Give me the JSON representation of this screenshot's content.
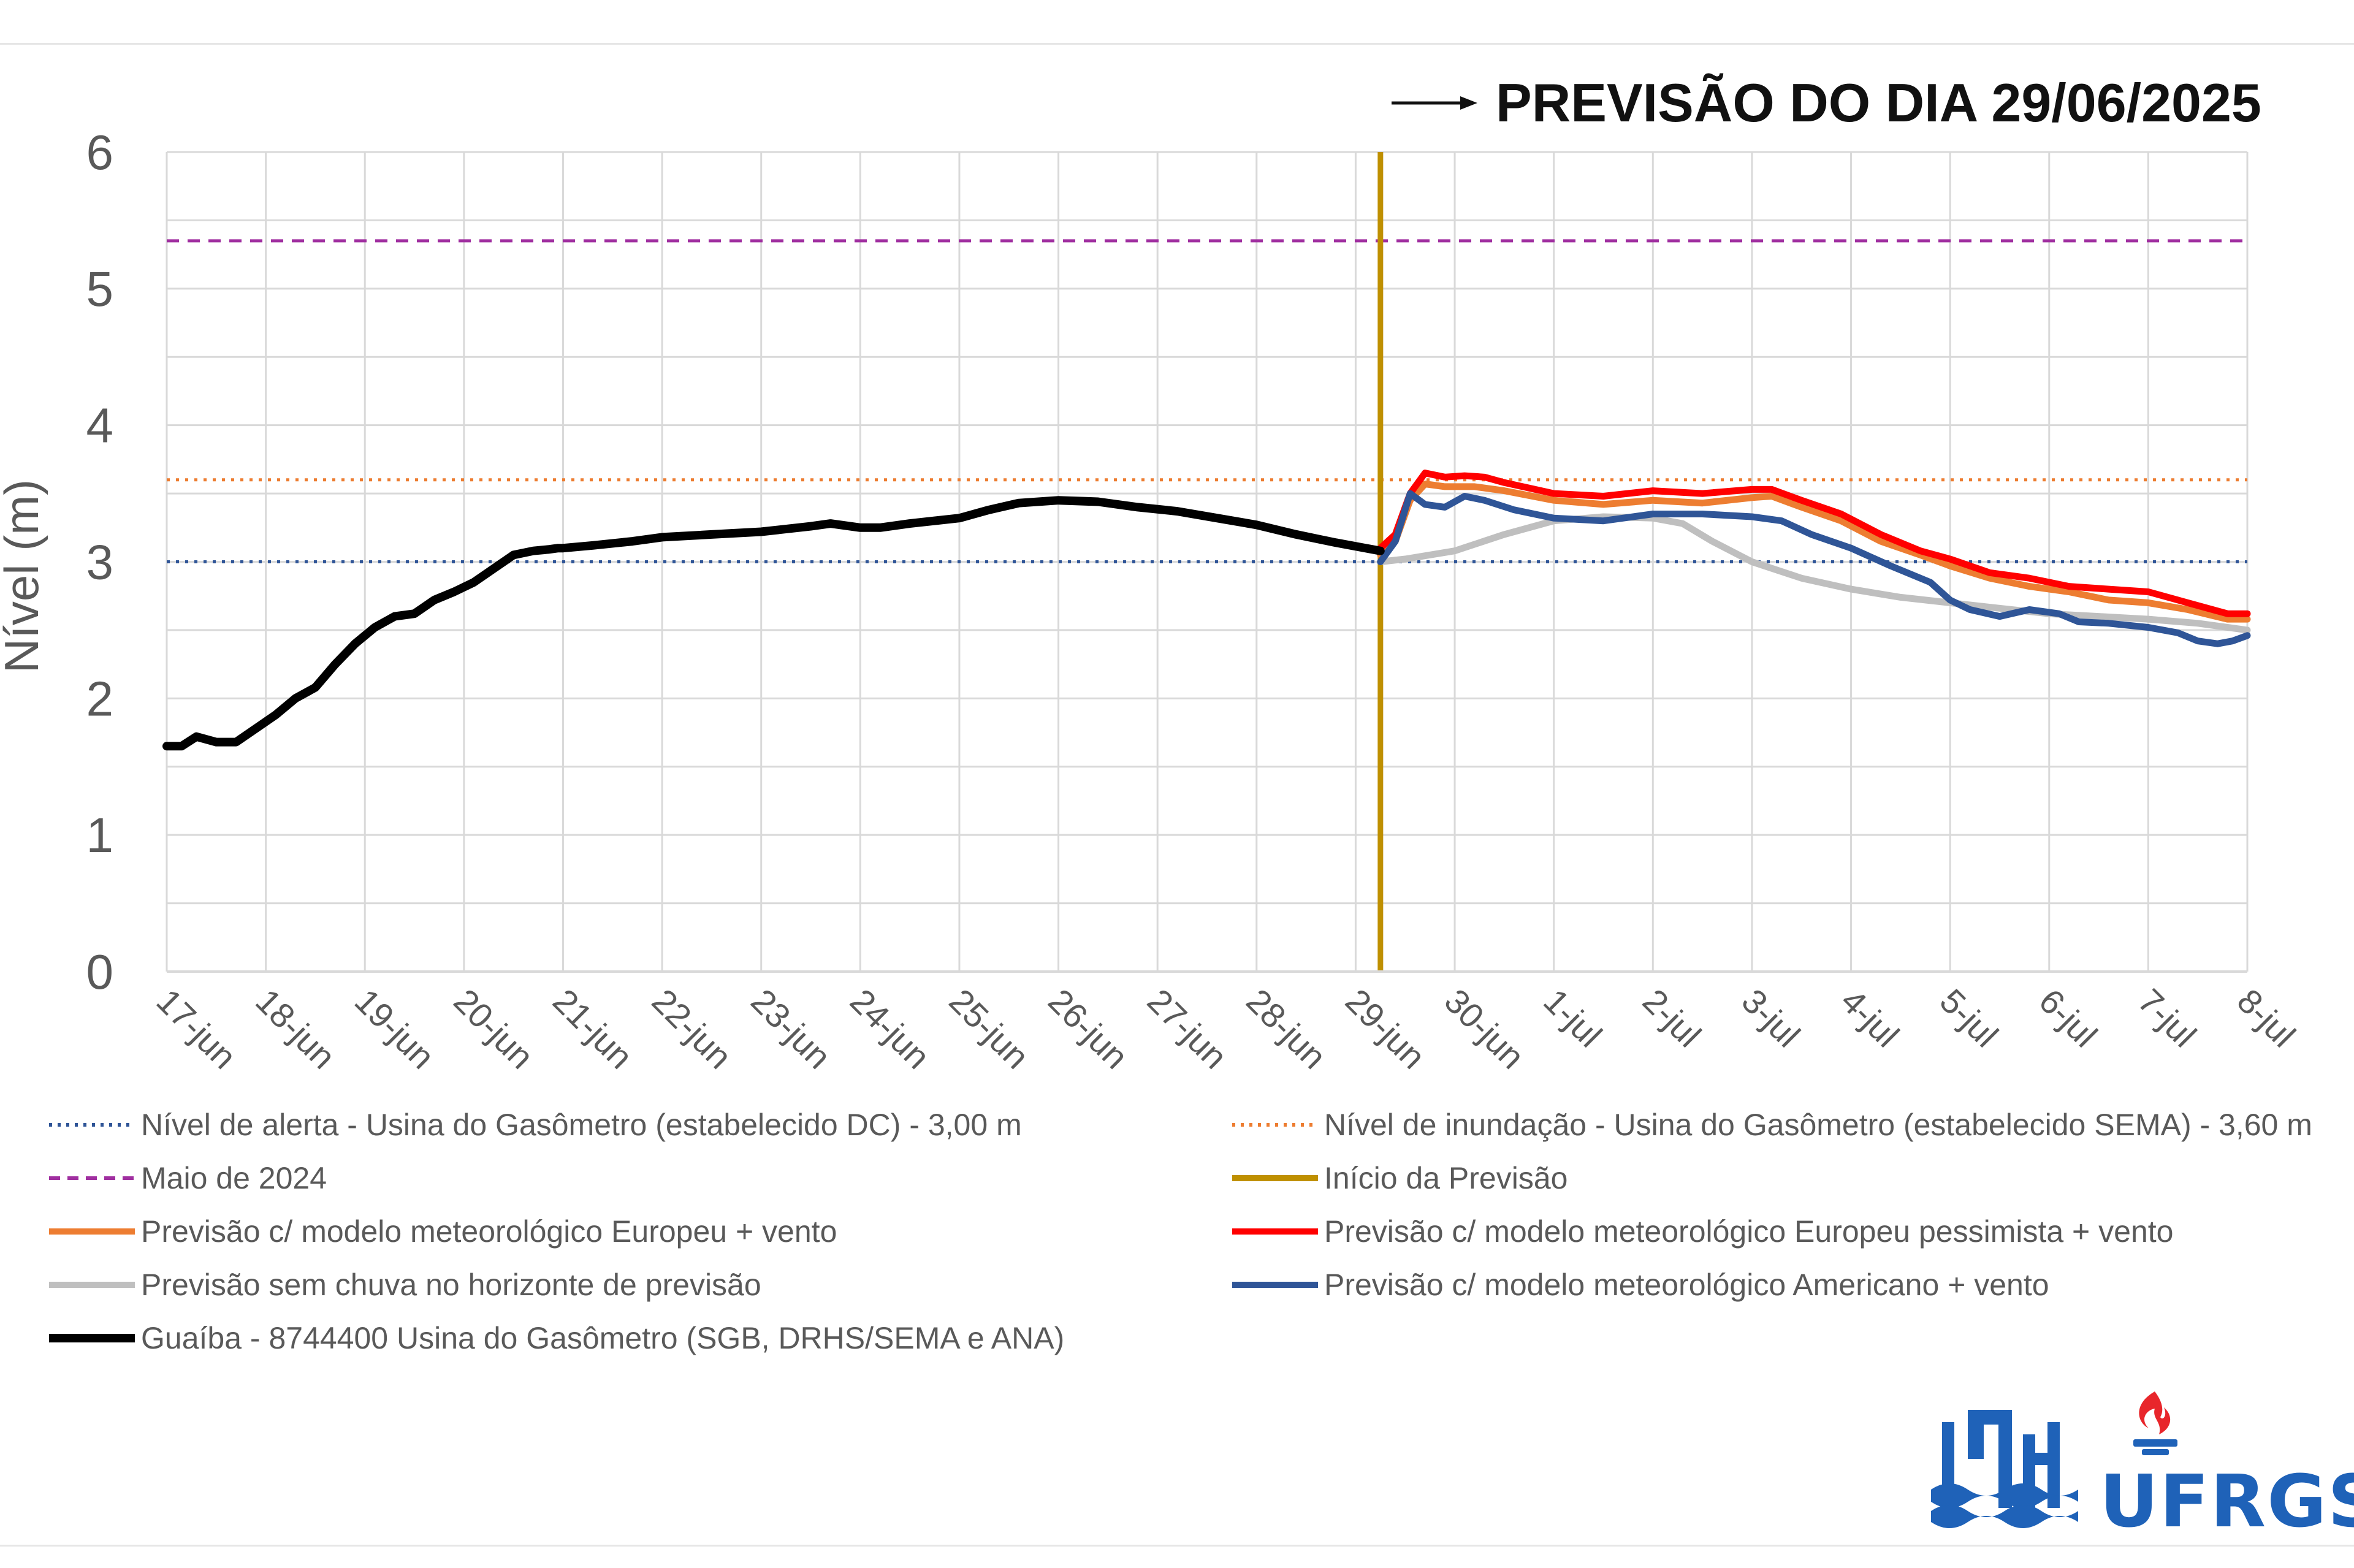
{
  "title": {
    "text": "PREVISÃO DO DIA 29/06/2025",
    "arrow_icon": "right-arrow-icon"
  },
  "chart_data": {
    "type": "line",
    "ylabel": "Nível (m)",
    "xlabel": "",
    "ylim": [
      0,
      6
    ],
    "yticks": [
      "0",
      "1",
      "2",
      "3",
      "4",
      "5",
      "6"
    ],
    "x_ticklabels": [
      "17-jun",
      "18-jun",
      "19-jun",
      "20-jun",
      "21-jun",
      "22-jun",
      "23-jun",
      "24-jun",
      "25-jun",
      "26-jun",
      "27-jun",
      "28-jun",
      "29-jun",
      "30-jun",
      "1-jul",
      "2-jul",
      "3-jul",
      "4-jul",
      "5-jul",
      "6-jul",
      "7-jul",
      "8-jul"
    ],
    "x_range_days": [
      0,
      21
    ],
    "grid": true,
    "legend_position": "bottom",
    "reference_lines": [
      {
        "name": "Nível de alerta - Usina do Gasômetro (estabelecido DC) - 3,00 m",
        "y": 3.0,
        "color": "#2f5597",
        "style": "dotted"
      },
      {
        "name": "Nível de inundação - Usina do Gasômetro (estabelecido SEMA) - 3,60 m",
        "y": 3.6,
        "color": "#ed7d31",
        "style": "dotted"
      },
      {
        "name": "Maio de 2024",
        "y": 5.35,
        "color": "#a02fa0",
        "style": "dashed"
      }
    ],
    "forecast_start": {
      "name": "Início da Previsão",
      "x": 12.25,
      "color": "#bf9000"
    },
    "series": [
      {
        "name": "Guaíba - 8744400 Usina do Gasômetro (SGB, DRHS/SEMA e ANA)",
        "color": "#000000",
        "x": [
          0,
          0.15,
          0.3,
          0.5,
          0.7,
          0.9,
          1.1,
          1.3,
          1.5,
          1.7,
          1.9,
          2.1,
          2.3,
          2.5,
          2.7,
          2.9,
          3.1,
          3.3,
          3.5,
          3.7,
          3.85,
          3.95,
          4.0,
          4.3,
          4.7,
          5.0,
          5.5,
          6.0,
          6.5,
          6.7,
          7.0,
          7.2,
          7.5,
          8.0,
          8.3,
          8.6,
          9.0,
          9.4,
          9.8,
          10.2,
          10.6,
          11.0,
          11.4,
          11.8,
          12.1,
          12.25
        ],
        "y": [
          1.65,
          1.65,
          1.72,
          1.68,
          1.68,
          1.78,
          1.88,
          2.0,
          2.08,
          2.25,
          2.4,
          2.52,
          2.6,
          2.62,
          2.72,
          2.78,
          2.85,
          2.95,
          3.05,
          3.08,
          3.09,
          3.1,
          3.1,
          3.12,
          3.15,
          3.18,
          3.2,
          3.22,
          3.26,
          3.28,
          3.25,
          3.25,
          3.28,
          3.32,
          3.38,
          3.43,
          3.45,
          3.44,
          3.4,
          3.37,
          3.32,
          3.27,
          3.2,
          3.14,
          3.1,
          3.08
        ]
      },
      {
        "name": "Previsão c/ modelo meteorológico Europeu + vento",
        "color": "#ed7d31",
        "x": [
          12.25,
          12.4,
          12.55,
          12.7,
          12.9,
          13.2,
          13.5,
          14.0,
          14.5,
          15.0,
          15.5,
          16.0,
          16.2,
          16.5,
          16.9,
          17.3,
          17.7,
          18.0,
          18.4,
          18.8,
          19.2,
          19.6,
          20.0,
          20.4,
          20.8,
          21.0
        ],
        "y": [
          3.05,
          3.15,
          3.45,
          3.57,
          3.55,
          3.55,
          3.52,
          3.45,
          3.42,
          3.45,
          3.43,
          3.47,
          3.48,
          3.4,
          3.3,
          3.15,
          3.05,
          2.97,
          2.88,
          2.82,
          2.78,
          2.72,
          2.7,
          2.65,
          2.58,
          2.58
        ]
      },
      {
        "name": "Previsão c/ modelo meteorológico Europeu pessimista + vento",
        "color": "#ff0000",
        "x": [
          12.25,
          12.4,
          12.55,
          12.7,
          12.9,
          13.1,
          13.3,
          13.5,
          14.0,
          14.5,
          15.0,
          15.5,
          16.0,
          16.2,
          16.5,
          16.9,
          17.3,
          17.7,
          18.0,
          18.4,
          18.8,
          19.2,
          19.6,
          20.0,
          20.4,
          20.8,
          21.0
        ],
        "y": [
          3.1,
          3.2,
          3.5,
          3.65,
          3.62,
          3.63,
          3.62,
          3.58,
          3.5,
          3.48,
          3.52,
          3.5,
          3.53,
          3.53,
          3.45,
          3.35,
          3.2,
          3.08,
          3.02,
          2.92,
          2.88,
          2.82,
          2.8,
          2.78,
          2.7,
          2.62,
          2.62
        ]
      },
      {
        "name": "Previsão sem chuva no horizonte de previsão",
        "color": "#bfbfbf",
        "x": [
          12.25,
          12.5,
          13.0,
          13.5,
          14.0,
          14.5,
          15.0,
          15.3,
          15.6,
          16.0,
          16.5,
          17.0,
          17.5,
          18.0,
          18.5,
          19.0,
          19.5,
          20.0,
          20.5,
          21.0
        ],
        "y": [
          3.0,
          3.02,
          3.08,
          3.2,
          3.3,
          3.33,
          3.32,
          3.28,
          3.15,
          3.0,
          2.88,
          2.8,
          2.74,
          2.7,
          2.66,
          2.62,
          2.6,
          2.58,
          2.55,
          2.5
        ]
      },
      {
        "name": "Previsão c/ modelo meteorológico Americano + vento",
        "color": "#2f5597",
        "x": [
          12.25,
          12.4,
          12.55,
          12.7,
          12.9,
          13.1,
          13.3,
          13.6,
          14.0,
          14.5,
          15.0,
          15.5,
          16.0,
          16.3,
          16.6,
          17.0,
          17.4,
          17.8,
          18.0,
          18.2,
          18.5,
          18.8,
          19.1,
          19.3,
          19.6,
          20.0,
          20.3,
          20.5,
          20.7,
          20.85,
          21.0
        ],
        "y": [
          3.0,
          3.15,
          3.5,
          3.42,
          3.4,
          3.48,
          3.45,
          3.38,
          3.32,
          3.3,
          3.35,
          3.35,
          3.33,
          3.3,
          3.2,
          3.1,
          2.97,
          2.85,
          2.72,
          2.65,
          2.6,
          2.65,
          2.62,
          2.56,
          2.55,
          2.52,
          2.48,
          2.42,
          2.4,
          2.42,
          2.46
        ]
      }
    ]
  },
  "legend": {
    "items": [
      {
        "label": "Nível de alerta - Usina do Gasômetro (estabelecido DC) - 3,00 m",
        "color": "#2f5597",
        "style": "dotted"
      },
      {
        "label": "Nível de inundação - Usina do Gasômetro (estabelecido SEMA) - 3,60 m",
        "color": "#ed7d31",
        "style": "dotted"
      },
      {
        "label": "Maio de 2024",
        "color": "#a02fa0",
        "style": "dashed"
      },
      {
        "label": "Início da Previsão",
        "color": "#bf9000",
        "style": "solid"
      },
      {
        "label": "Previsão c/ modelo meteorológico Europeu + vento",
        "color": "#ed7d31",
        "style": "solid"
      },
      {
        "label": "Previsão c/ modelo meteorológico Europeu pessimista + vento",
        "color": "#ff0000",
        "style": "solid"
      },
      {
        "label": "Previsão sem chuva no horizonte de previsão",
        "color": "#bfbfbf",
        "style": "solid"
      },
      {
        "label": "Previsão c/ modelo meteorológico Americano + vento",
        "color": "#2f5597",
        "style": "solid"
      },
      {
        "label": "Guaíba - 8744400 Usina do Gasômetro (SGB, DRHS/SEMA e ANA)",
        "color": "#000000",
        "style": "solid"
      }
    ]
  },
  "logos": {
    "iph_icon": "iph-logo-icon",
    "ufrgs_icon": "ufrgs-flame-icon",
    "ufrgs_text": "UFRGS",
    "brand_color": "#1f62b8",
    "flame_color": "#e8262b"
  }
}
